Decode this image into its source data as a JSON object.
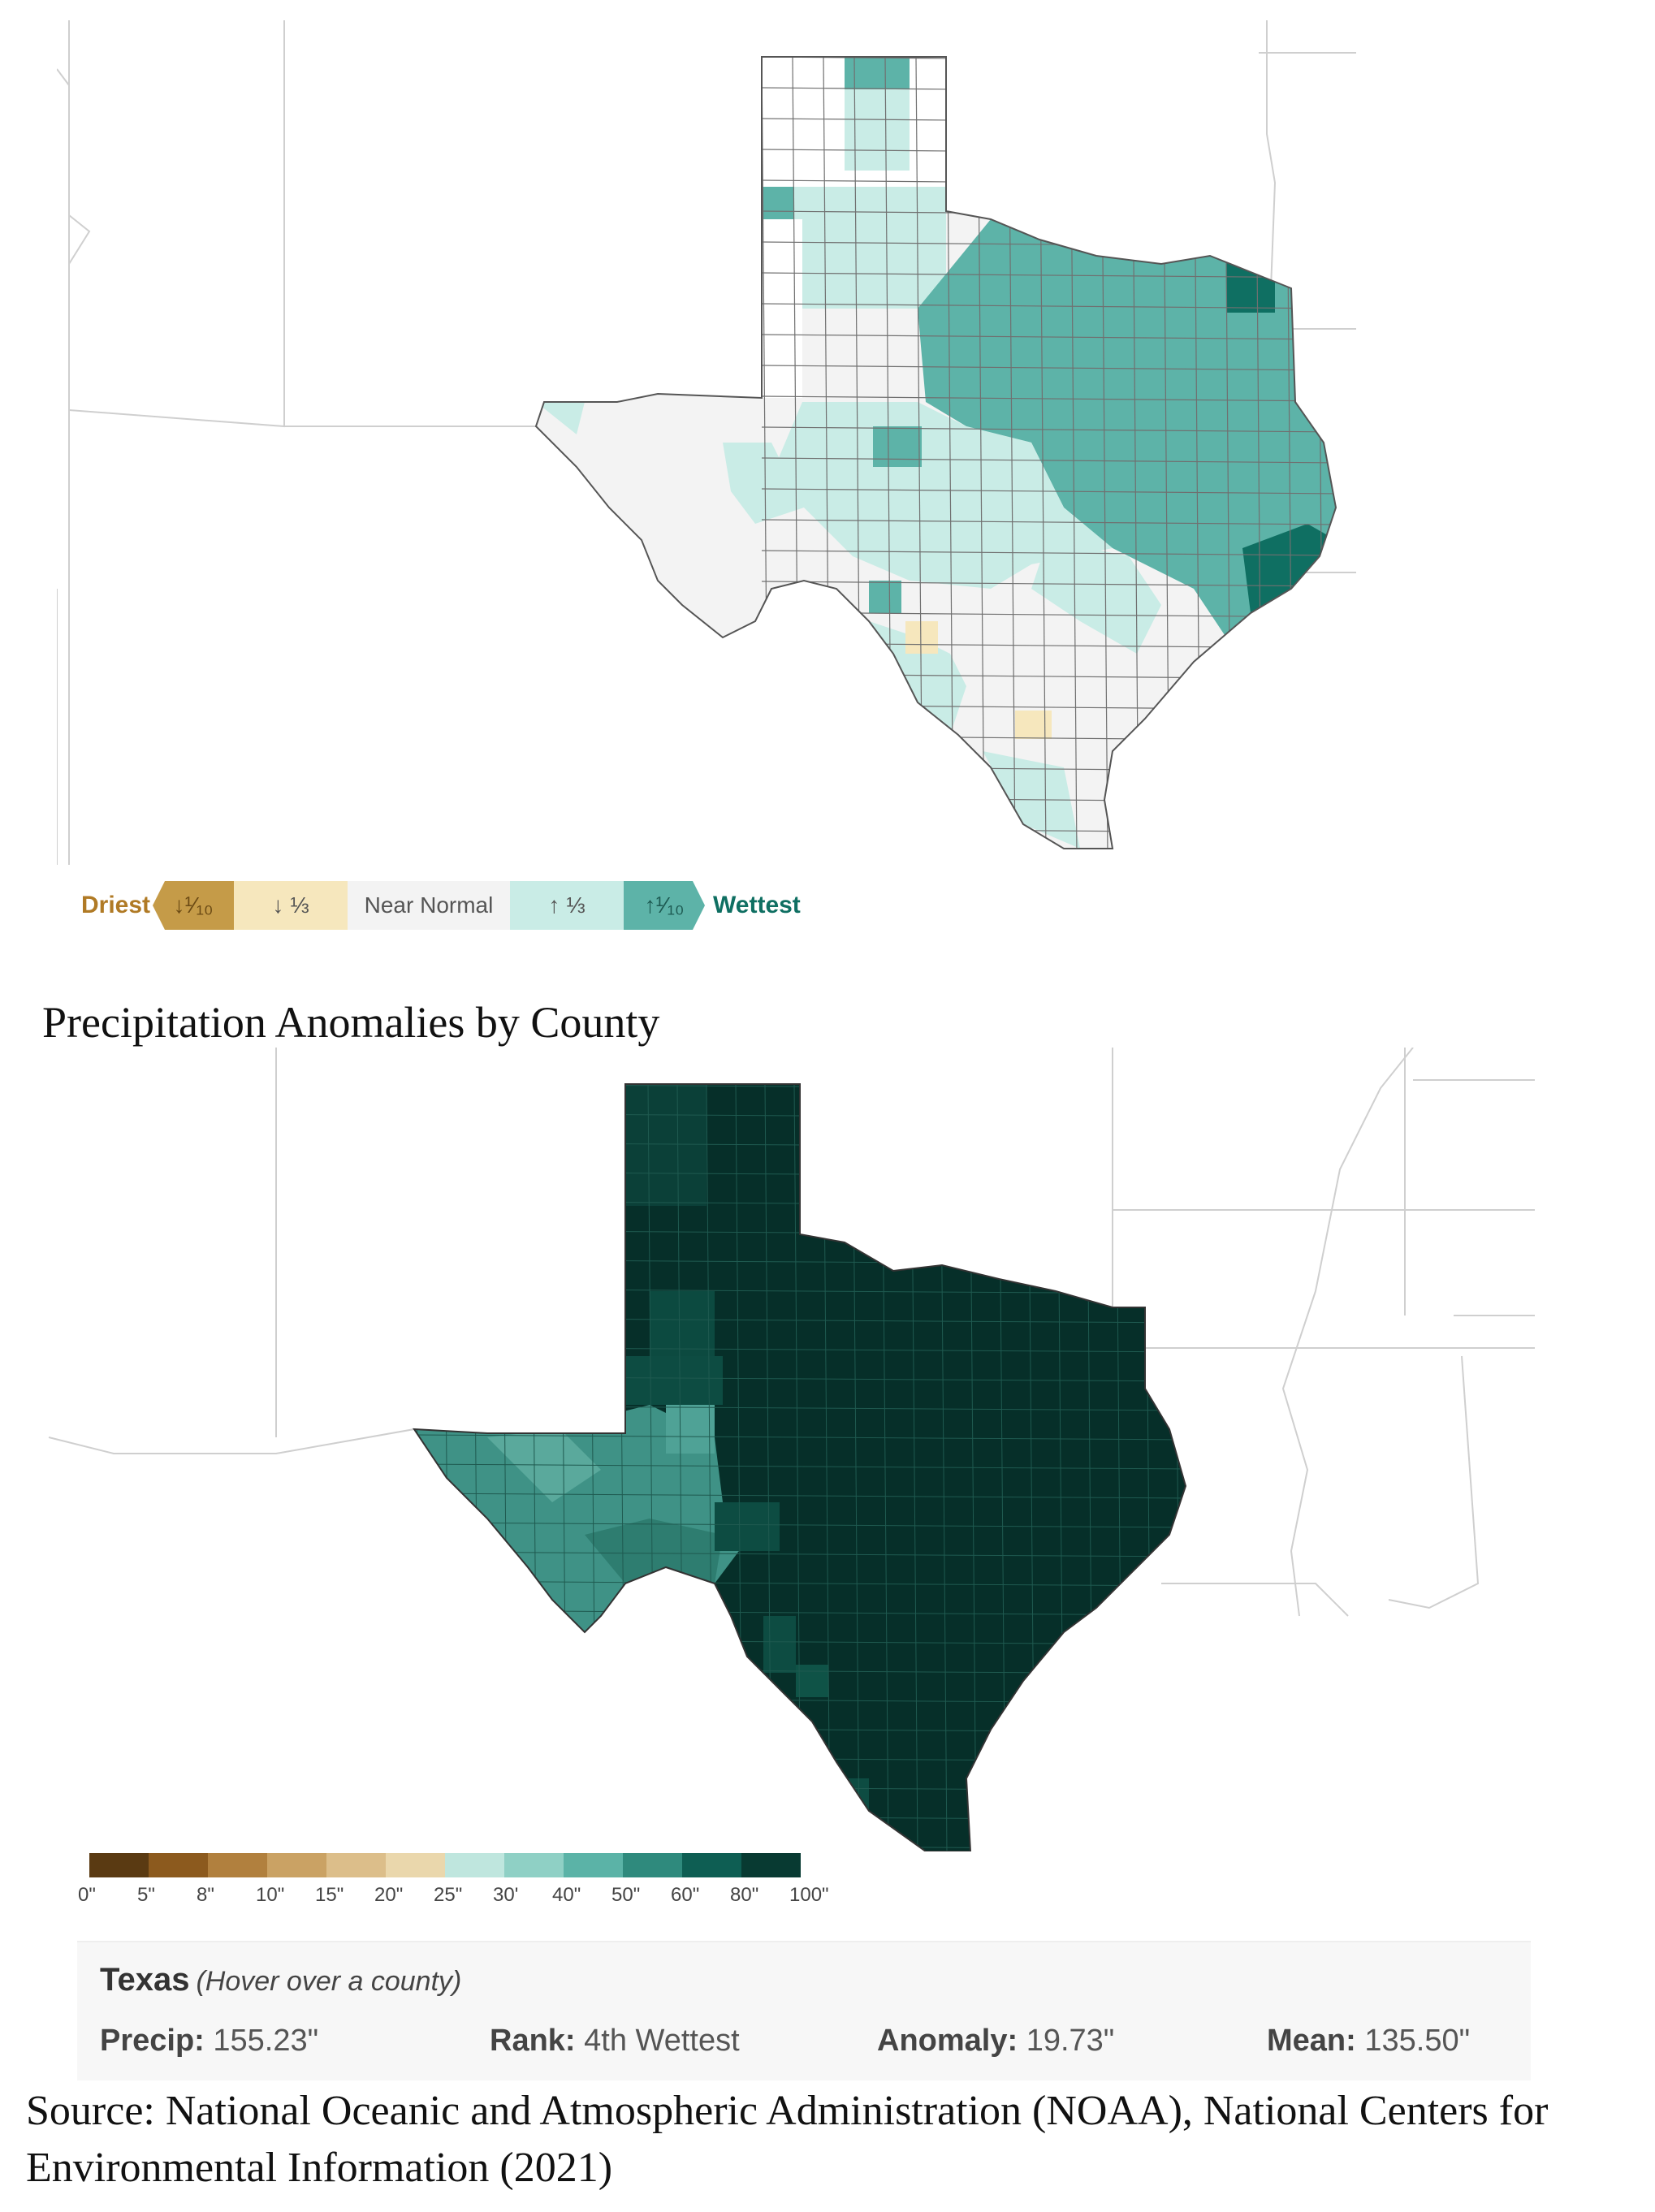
{
  "map1": {
    "legend": {
      "driest_label": "Driest",
      "wettest_label": "Wettest",
      "cells": [
        "↓¹⁄₁₀",
        "↓ ⅓",
        "Near Normal",
        "↑ ⅓",
        "↑¹⁄₁₀"
      ],
      "colors": {
        "driest": "#c59b48",
        "dry_third": "#f6e7bd",
        "normal": "#f3f3f3",
        "wet_third": "#c9ece6",
        "wet_tenth": "#5db3a8",
        "wettest": "#0f6f62"
      }
    }
  },
  "caption": "Precipitation Anomalies by County",
  "map2": {
    "scale": {
      "colors": [
        "#5a3a12",
        "#8c5a1e",
        "#b1803e",
        "#caa264",
        "#dcbe8a",
        "#ead7ac",
        "#bfe6de",
        "#8fd0c5",
        "#5bb3a7",
        "#2f8a7d",
        "#0e5e53",
        "#083a32"
      ],
      "ticks": [
        "0\"",
        "5\"",
        "8\"",
        "10\"",
        "15\"",
        "20\"",
        "25\"",
        "30'",
        "40\"",
        "50\"",
        "60\"",
        "80\"",
        "100\""
      ]
    },
    "info": {
      "title": "Texas",
      "hint": "(Hover over a county)",
      "precip_label": "Precip:",
      "precip_value": "155.23\"",
      "rank_label": "Rank:",
      "rank_value": "4th Wettest",
      "anomaly_label": "Anomaly:",
      "anomaly_value": "19.73\"",
      "mean_label": "Mean:",
      "mean_value": "135.50\""
    }
  },
  "source": "Source: National Oceanic and Atmospheric Administration (NOAA), National Centers for Environmental Information (2021)"
}
